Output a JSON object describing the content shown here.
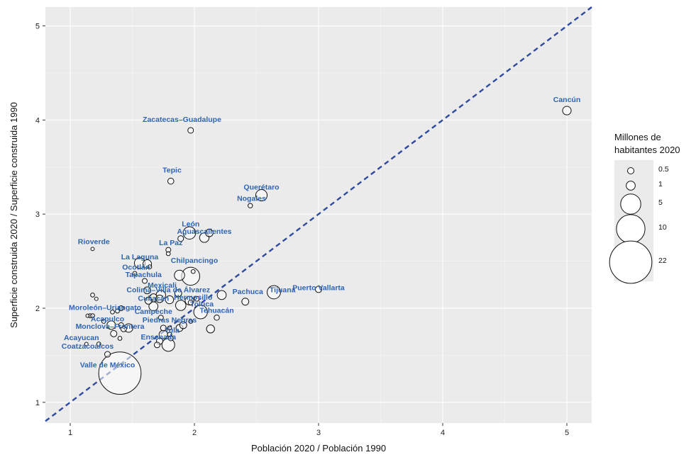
{
  "chart_data": {
    "type": "scatter",
    "xlabel": "Población 2020 / Población 1990",
    "ylabel": "Superficie construida 2020 / Superficie construida 1990",
    "xlim": [
      0.8,
      5.2
    ],
    "ylim": [
      0.78,
      5.2
    ],
    "x_ticks": [
      1,
      2,
      3,
      4,
      5
    ],
    "y_ticks": [
      1,
      2,
      3,
      4,
      5
    ],
    "grid": true,
    "reference_line": {
      "type": "diagonal y = x",
      "style": "dashed",
      "color": "#2E4A9E"
    },
    "colors": {
      "panel": "#EBEBEB",
      "grid": "#FFFFFF",
      "label": "#2E64B2",
      "marker_stroke": "#111111"
    },
    "legend": {
      "title": [
        "Millones de",
        "habitantes 2020"
      ],
      "placement": "right",
      "entries": [
        {
          "label": "0.5",
          "size": 0.5
        },
        {
          "label": "1",
          "size": 1
        },
        {
          "label": "5",
          "size": 5
        },
        {
          "label": "10",
          "size": 10
        },
        {
          "label": "22",
          "size": 22
        }
      ]
    },
    "labeled_points": [
      {
        "label": "Cancún",
        "x": 5.0,
        "y": 4.1,
        "size": 0.9,
        "lx": 5.0,
        "ly": 4.19
      },
      {
        "label": "Zacatecas–Guadalupe",
        "x": 1.97,
        "y": 3.89,
        "size": 0.4,
        "lx": 1.9,
        "ly": 3.98
      },
      {
        "label": "Tepic",
        "x": 1.81,
        "y": 3.35,
        "size": 0.45,
        "lx": 1.82,
        "ly": 3.44
      },
      {
        "label": "Querétaro",
        "x": 2.54,
        "y": 3.2,
        "size": 1.6,
        "lx": 2.54,
        "ly": 3.26
      },
      {
        "label": "Nogales",
        "x": 2.45,
        "y": 3.09,
        "size": 0.25,
        "lx": 2.46,
        "ly": 3.14
      },
      {
        "label": "León",
        "x": 1.96,
        "y": 2.8,
        "size": 1.9,
        "lx": 1.97,
        "ly": 2.87
      },
      {
        "label": "Aguascalientes",
        "x": 2.08,
        "y": 2.75,
        "size": 1.1,
        "lx": 2.08,
        "ly": 2.79
      },
      {
        "label": "La Paz",
        "x": 1.79,
        "y": 2.62,
        "size": 0.3,
        "lx": 1.81,
        "ly": 2.67
      },
      {
        "label": "Rioverde",
        "x": 1.18,
        "y": 2.63,
        "size": 0.15,
        "lx": 1.19,
        "ly": 2.68
      },
      {
        "label": "La Laguna",
        "x": 1.56,
        "y": 2.48,
        "size": 1.4,
        "lx": 1.56,
        "ly": 2.52
      },
      {
        "label": "Chilpancingo",
        "x": 1.97,
        "y": 2.34,
        "size": 4.0,
        "lx": 2.0,
        "ly": 2.48
      },
      {
        "label": "Ocotlán",
        "x": 1.52,
        "y": 2.37,
        "size": 0.2,
        "lx": 1.53,
        "ly": 2.41
      },
      {
        "label": "Tapachula",
        "x": 1.6,
        "y": 2.29,
        "size": 0.3,
        "lx": 1.59,
        "ly": 2.33
      },
      {
        "label": "Mexicali",
        "x": 1.73,
        "y": 2.14,
        "size": 1.1,
        "lx": 1.74,
        "ly": 2.22
      },
      {
        "label": "Colima–Villa de Álvarez",
        "x": 1.67,
        "y": 2.11,
        "size": 0.8,
        "lx": 1.79,
        "ly": 2.17
      },
      {
        "label": "Culiacán",
        "x": 1.67,
        "y": 2.02,
        "size": 1.0,
        "lx": 1.67,
        "ly": 2.08
      },
      {
        "label": "Pachuca",
        "x": 2.41,
        "y": 2.07,
        "size": 0.6,
        "lx": 2.43,
        "ly": 2.15
      },
      {
        "label": "Tijuana",
        "x": 2.64,
        "y": 2.17,
        "size": 2.2,
        "lx": 2.71,
        "ly": 2.17
      },
      {
        "label": "Puerto Vallarta",
        "x": 3.0,
        "y": 2.2,
        "size": 0.5,
        "lx": 3.0,
        "ly": 2.19
      },
      {
        "label": "Hermosillo",
        "x": 1.96,
        "y": 2.08,
        "size": 0.9,
        "lx": 1.99,
        "ly": 2.09
      },
      {
        "label": "Toluca",
        "x": 2.05,
        "y": 1.96,
        "size": 2.3,
        "lx": 2.06,
        "ly": 2.02
      },
      {
        "label": "Tehuacán",
        "x": 2.18,
        "y": 1.9,
        "size": 0.35,
        "lx": 2.18,
        "ly": 1.95
      },
      {
        "label": "Moroleón–Uriangato",
        "x": 1.16,
        "y": 1.92,
        "size": 0.2,
        "lx": 1.28,
        "ly": 1.98
      },
      {
        "label": "Campeche",
        "x": 1.73,
        "y": 1.9,
        "size": 0.3,
        "lx": 1.67,
        "ly": 1.94
      },
      {
        "label": "Piedras Negras",
        "x": 1.8,
        "y": 1.79,
        "size": 0.2,
        "lx": 1.8,
        "ly": 1.85
      },
      {
        "label": "Acapulco",
        "x": 1.33,
        "y": 1.82,
        "size": 0.9,
        "lx": 1.3,
        "ly": 1.86
      },
      {
        "label": "Monclova–Frontera",
        "x": 1.43,
        "y": 1.78,
        "size": 0.4,
        "lx": 1.32,
        "ly": 1.78
      },
      {
        "label": "Tula",
        "x": 1.8,
        "y": 1.72,
        "size": 0.25,
        "lx": 1.82,
        "ly": 1.74
      },
      {
        "label": "Ensenada",
        "x": 1.72,
        "y": 1.65,
        "size": 0.5,
        "lx": 1.71,
        "ly": 1.67
      },
      {
        "label": "Acayucan",
        "x": 1.13,
        "y": 1.62,
        "size": 0.15,
        "lx": 1.09,
        "ly": 1.66
      },
      {
        "label": "Coatzacoalcos",
        "x": 1.3,
        "y": 1.51,
        "size": 0.4,
        "lx": 1.14,
        "ly": 1.57
      },
      {
        "label": "Valle de México",
        "x": 1.4,
        "y": 1.31,
        "size": 22.0,
        "lx": 1.3,
        "ly": 1.37
      }
    ],
    "unlabeled_points": [
      {
        "x": 1.27,
        "y": 1.86,
        "size": 0.2
      },
      {
        "x": 1.41,
        "y": 1.82,
        "size": 0.3
      },
      {
        "x": 1.47,
        "y": 1.79,
        "size": 0.9
      },
      {
        "x": 1.35,
        "y": 1.73,
        "size": 0.5
      },
      {
        "x": 1.23,
        "y": 1.62,
        "size": 0.2
      },
      {
        "x": 1.4,
        "y": 1.68,
        "size": 0.2
      },
      {
        "x": 1.18,
        "y": 2.14,
        "size": 0.2
      },
      {
        "x": 1.21,
        "y": 2.1,
        "size": 0.15
      },
      {
        "x": 1.14,
        "y": 1.92,
        "size": 0.15
      },
      {
        "x": 1.18,
        "y": 1.92,
        "size": 0.2
      },
      {
        "x": 1.34,
        "y": 1.96,
        "size": 0.2
      },
      {
        "x": 1.38,
        "y": 1.97,
        "size": 0.2
      },
      {
        "x": 1.41,
        "y": 2.0,
        "size": 0.3
      },
      {
        "x": 1.62,
        "y": 2.47,
        "size": 0.9
      },
      {
        "x": 1.64,
        "y": 2.44,
        "size": 0.2
      },
      {
        "x": 1.62,
        "y": 2.19,
        "size": 0.6
      },
      {
        "x": 1.63,
        "y": 2.08,
        "size": 0.6
      },
      {
        "x": 1.72,
        "y": 2.1,
        "size": 0.7
      },
      {
        "x": 1.8,
        "y": 2.09,
        "size": 0.8
      },
      {
        "x": 1.87,
        "y": 2.16,
        "size": 0.6
      },
      {
        "x": 1.89,
        "y": 2.03,
        "size": 1.3
      },
      {
        "x": 1.97,
        "y": 2.06,
        "size": 0.3
      },
      {
        "x": 2.22,
        "y": 2.14,
        "size": 1.0
      },
      {
        "x": 2.13,
        "y": 1.78,
        "size": 0.8
      },
      {
        "x": 1.7,
        "y": 1.61,
        "size": 0.4
      },
      {
        "x": 1.75,
        "y": 1.79,
        "size": 0.4
      },
      {
        "x": 1.88,
        "y": 1.79,
        "size": 0.6
      },
      {
        "x": 1.91,
        "y": 1.82,
        "size": 0.6
      },
      {
        "x": 1.97,
        "y": 1.86,
        "size": 0.2
      },
      {
        "x": 1.75,
        "y": 1.72,
        "size": 0.9
      },
      {
        "x": 1.81,
        "y": 1.68,
        "size": 0.3
      },
      {
        "x": 1.79,
        "y": 1.61,
        "size": 2.0
      },
      {
        "x": 1.88,
        "y": 2.35,
        "size": 1.3
      },
      {
        "x": 1.99,
        "y": 2.39,
        "size": 0.2
      },
      {
        "x": 1.89,
        "y": 2.74,
        "size": 0.4
      },
      {
        "x": 1.79,
        "y": 2.58,
        "size": 0.2
      },
      {
        "x": 2.12,
        "y": 2.8,
        "size": 0.7
      },
      {
        "x": 2.02,
        "y": 2.1,
        "size": 0.3
      }
    ]
  }
}
